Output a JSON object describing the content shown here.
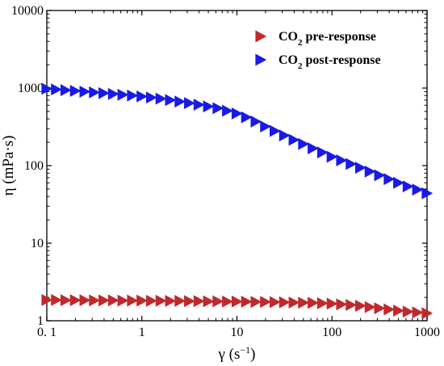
{
  "chart_data": {
    "type": "scatter",
    "x_scale": "log",
    "y_scale": "log",
    "xlim": [
      0.1,
      1000
    ],
    "ylim": [
      1,
      10000
    ],
    "xlabel_parts": [
      "γ (s",
      "−1",
      ")"
    ],
    "ylabel": "η (mPa·s)",
    "x_ticks": [
      0.1,
      1,
      10,
      100,
      1000
    ],
    "x_tick_labels": [
      "0. 1",
      "1",
      "10",
      "100",
      "1000"
    ],
    "y_ticks": [
      1,
      10,
      100,
      1000,
      10000
    ],
    "y_tick_labels": [
      "1",
      "10",
      "100",
      "1000",
      "10000"
    ],
    "grid": false,
    "legend_position": "top-right",
    "marker": "triangle-right",
    "series": [
      {
        "name_parts": [
          "CO",
          "2",
          " pre-response"
        ],
        "color": "#c0282c",
        "x": [
          0.1,
          0.1259,
          0.1585,
          0.1995,
          0.2512,
          0.3162,
          0.3981,
          0.5012,
          0.631,
          0.7943,
          1,
          1.259,
          1.585,
          1.995,
          2.512,
          3.162,
          3.981,
          5.012,
          6.31,
          7.943,
          10,
          12.59,
          15.85,
          19.95,
          25.12,
          31.62,
          39.81,
          50.12,
          63.1,
          79.43,
          100,
          125.9,
          158.5,
          199.5,
          251.2,
          316.2,
          398.1,
          501.2,
          631,
          794.3,
          1000
        ],
        "y": [
          1.85,
          1.85,
          1.84,
          1.84,
          1.84,
          1.83,
          1.83,
          1.83,
          1.82,
          1.82,
          1.82,
          1.81,
          1.81,
          1.8,
          1.8,
          1.79,
          1.79,
          1.78,
          1.78,
          1.77,
          1.77,
          1.76,
          1.75,
          1.75,
          1.74,
          1.73,
          1.72,
          1.71,
          1.7,
          1.68,
          1.66,
          1.63,
          1.6,
          1.56,
          1.5,
          1.45,
          1.4,
          1.35,
          1.31,
          1.28,
          1.25
        ]
      },
      {
        "name_parts": [
          "CO",
          "2",
          " post-response"
        ],
        "color": "#1a1ae6",
        "x": [
          0.1,
          0.1259,
          0.1585,
          0.1995,
          0.2512,
          0.3162,
          0.3981,
          0.5012,
          0.631,
          0.7943,
          1,
          1.259,
          1.585,
          1.995,
          2.512,
          3.162,
          3.981,
          5.012,
          6.31,
          7.943,
          10,
          12.59,
          15.85,
          19.95,
          25.12,
          31.62,
          39.81,
          50.12,
          63.1,
          79.43,
          100,
          125.9,
          158.5,
          199.5,
          251.2,
          316.2,
          398.1,
          501.2,
          631,
          794.3,
          1000
        ],
        "y": [
          980,
          960,
          940,
          920,
          900,
          880,
          860,
          840,
          820,
          800,
          780,
          755,
          730,
          700,
          670,
          640,
          610,
          580,
          550,
          510,
          470,
          420,
          370,
          320,
          280,
          245,
          215,
          190,
          167,
          148,
          130,
          117,
          105,
          94,
          84,
          75,
          67,
          60,
          54,
          49,
          44
        ]
      }
    ]
  }
}
